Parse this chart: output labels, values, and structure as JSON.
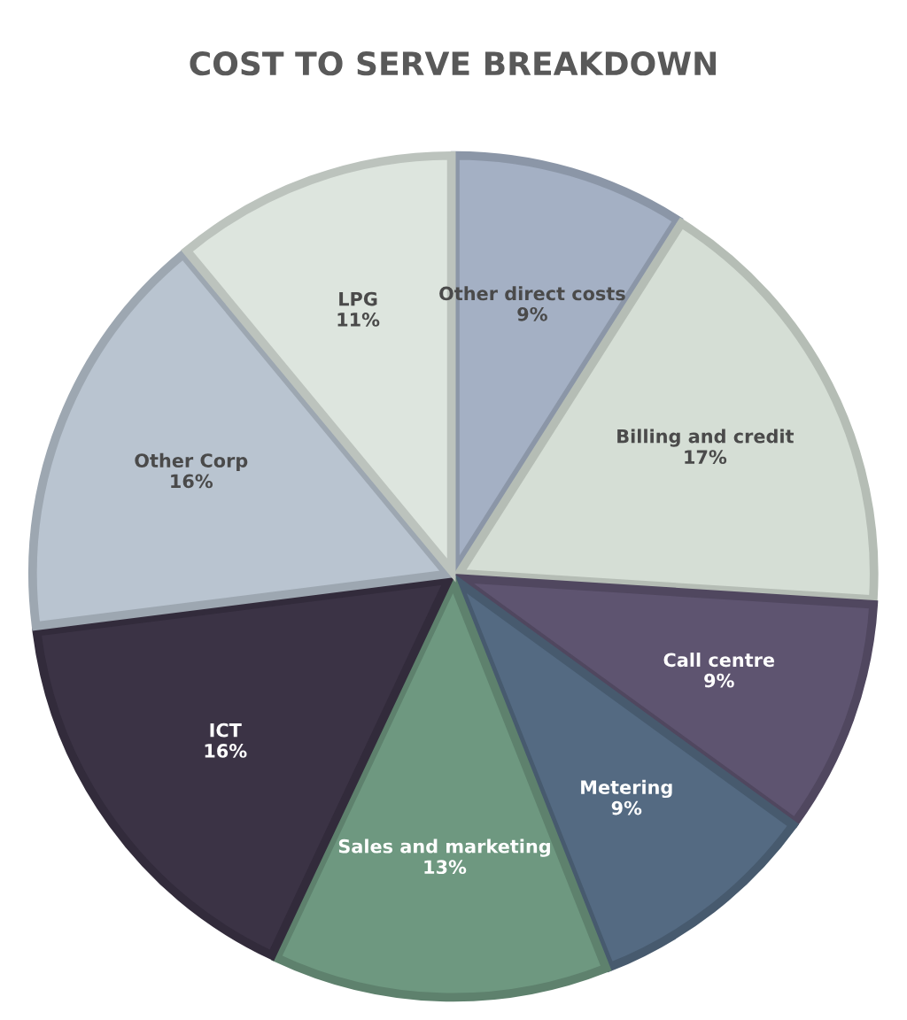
{
  "chart_data": {
    "type": "pie",
    "title": "COST TO SERVE BREAKDOWN",
    "categories": [
      "Other direct costs",
      "Billing and credit",
      "Call centre",
      "Metering",
      "Sales and marketing",
      "ICT",
      "Other Corp",
      "LPG"
    ],
    "values": [
      9,
      17,
      9,
      9,
      13,
      16,
      16,
      11
    ],
    "colors": [
      "#a4b0c4",
      "#d5ded5",
      "#5e5470",
      "#546a82",
      "#6e9880",
      "#3b3345",
      "#b9c4d0",
      "#dde5de"
    ],
    "value_labels": [
      "9%",
      "17%",
      "9%",
      "9%",
      "13%",
      "16%",
      "16%",
      "11%"
    ]
  }
}
